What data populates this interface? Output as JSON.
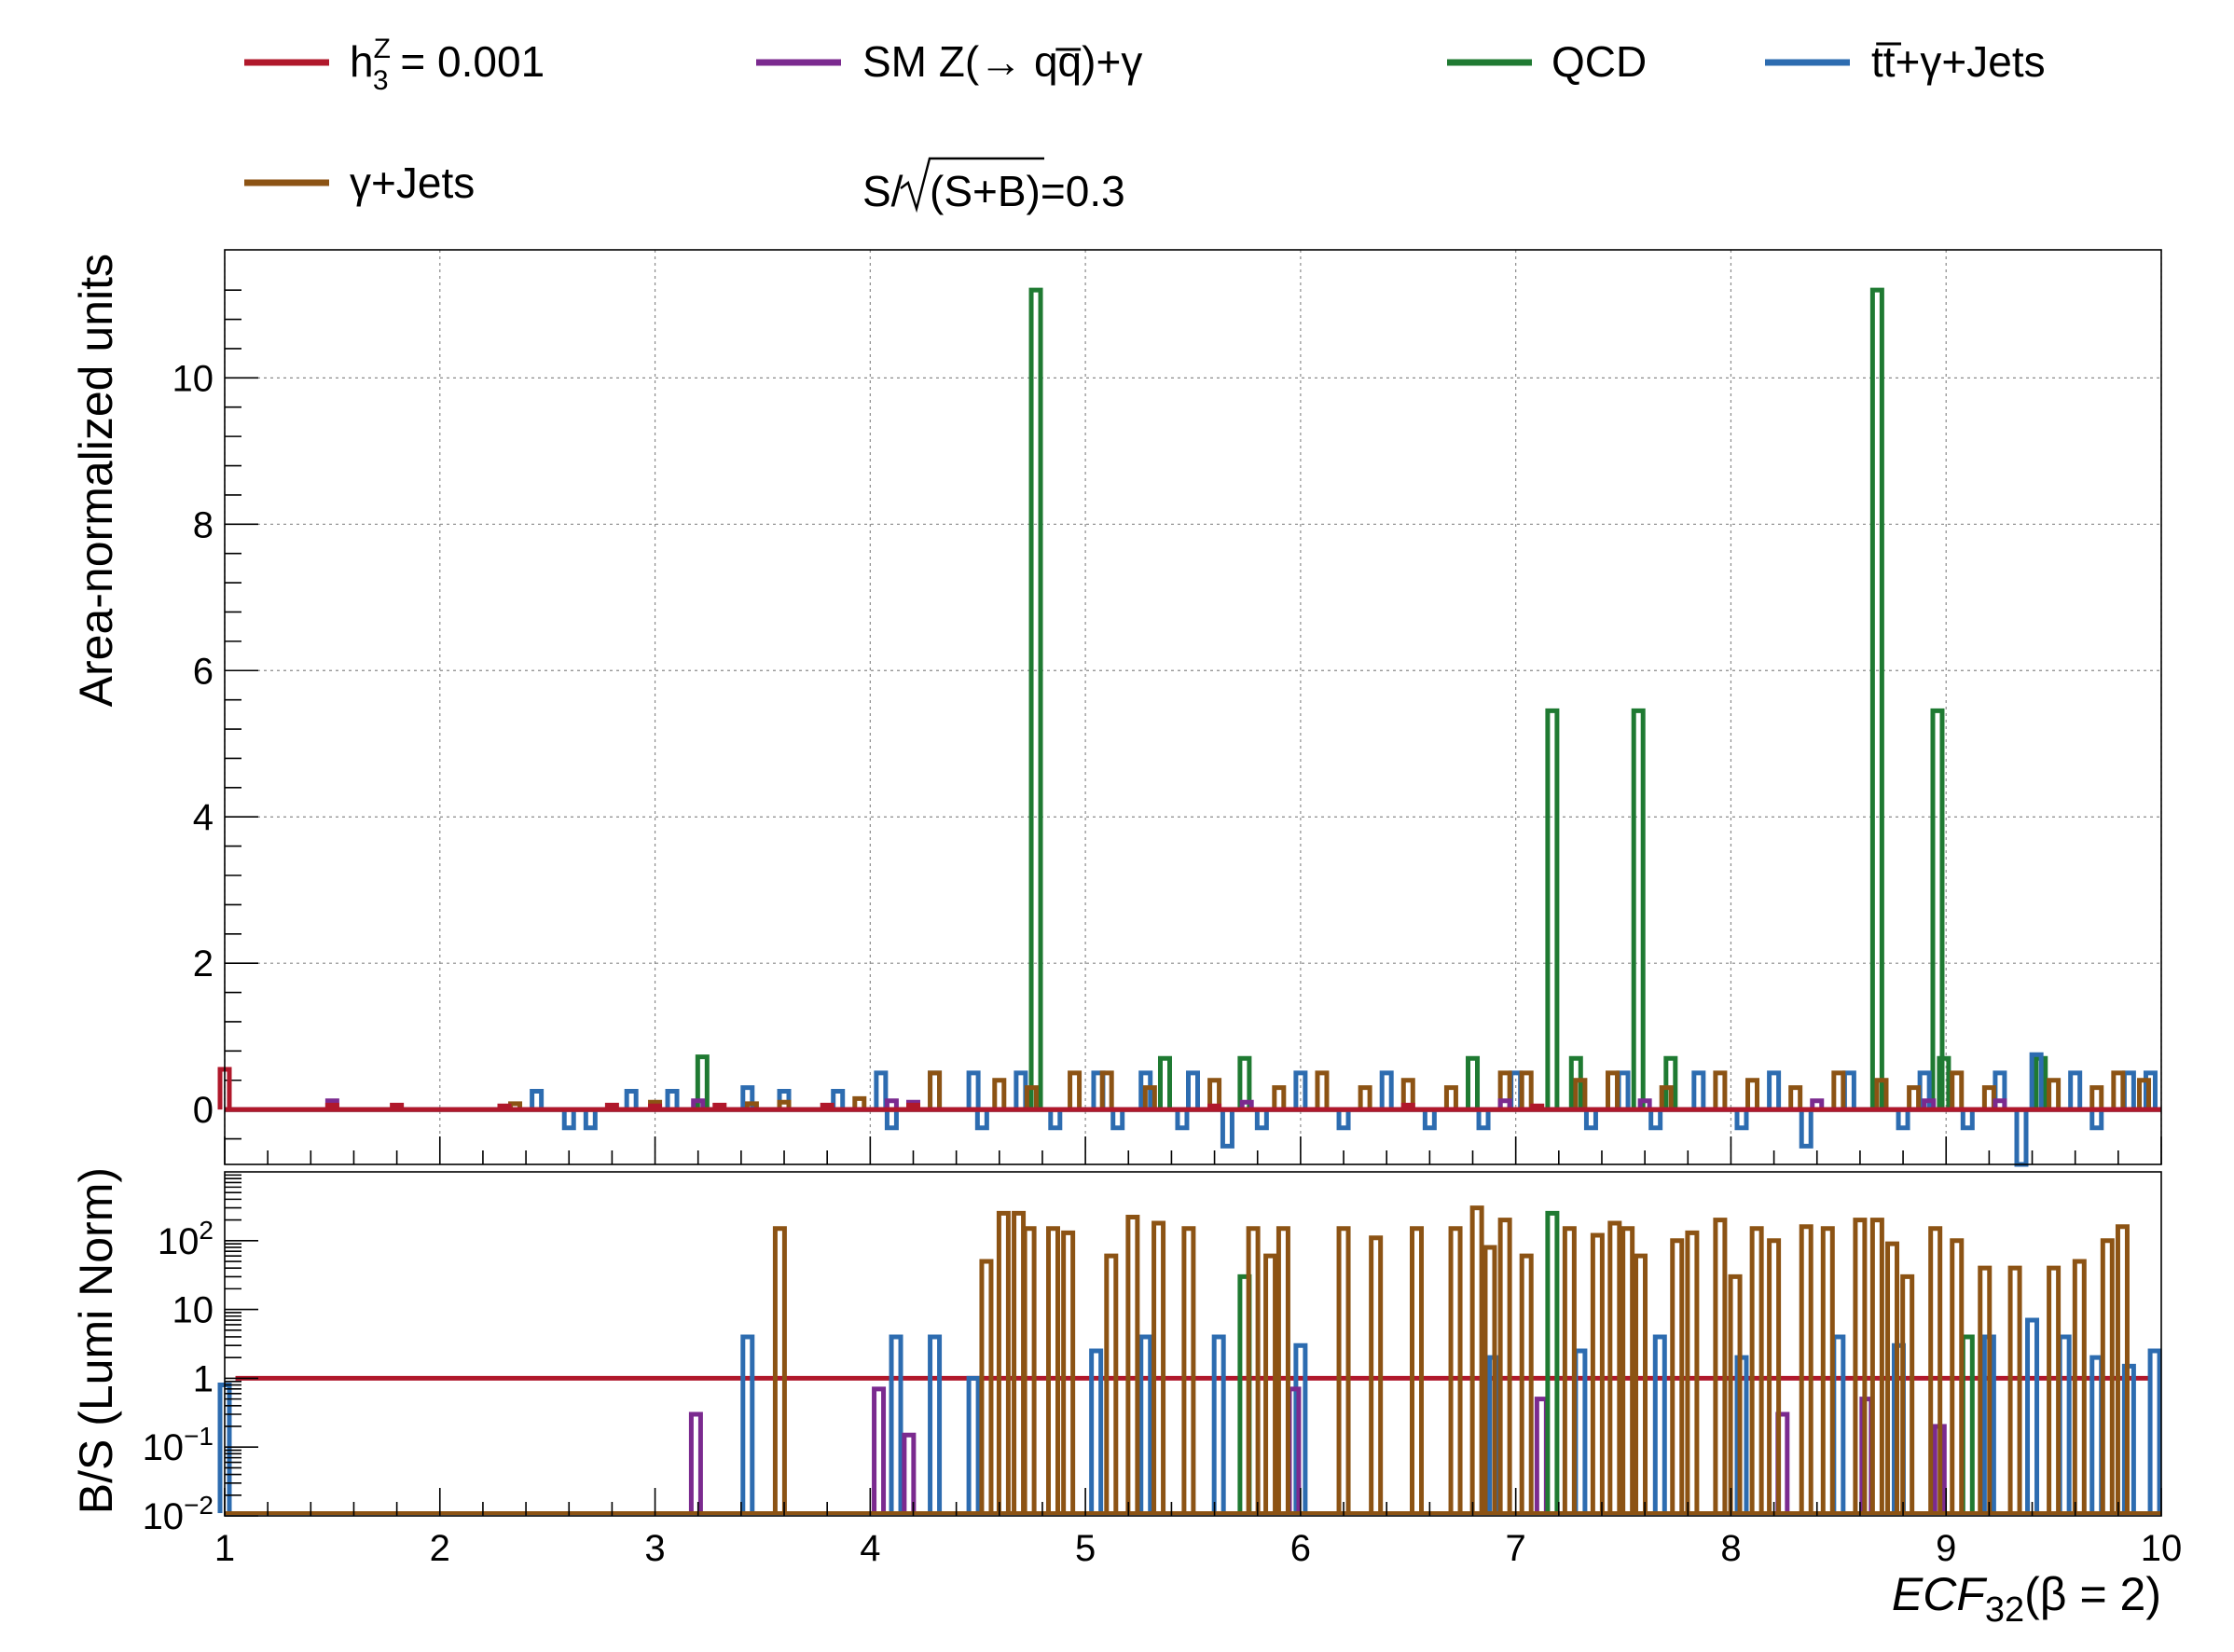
{
  "colors": {
    "signal": "#b0182b",
    "zqq": "#7b2a8f",
    "qcd": "#1f7a32",
    "ttbar": "#2d6cb0",
    "gjets": "#8c5314"
  },
  "legend": {
    "signal": "h3Z = 0.001",
    "signal_parts": {
      "base": "h",
      "sup": "Z",
      "sub": "3",
      "rest": " = 0.001"
    },
    "zqq": "SM Z(→ qq̅)+γ",
    "qcd": "QCD",
    "ttbar": "tt̅+γ+Jets",
    "gjets": "γ+Jets",
    "significance": "S/√(S+B)=0.3",
    "significance_parts": {
      "lhs": "S/",
      "rad": "(S+B)",
      "rhs": "=0.3"
    }
  },
  "chart_data": [
    {
      "type": "line",
      "step": true,
      "panel": "top",
      "ylabel": "Area-normalized units",
      "xlim": [
        1,
        10
      ],
      "ylim": [
        -0.75,
        11.75
      ],
      "yticks": [
        0,
        2,
        4,
        6,
        8,
        10
      ],
      "grid": true,
      "series": [
        {
          "key": "qcd",
          "name": "QCD",
          "spikes": [
            [
              3.22,
              0.72
            ],
            [
              4.77,
              11.2
            ],
            [
              5.37,
              0.7
            ],
            [
              5.74,
              0.7
            ],
            [
              6.8,
              0.7
            ],
            [
              7.17,
              5.45
            ],
            [
              7.28,
              0.7
            ],
            [
              7.57,
              5.45
            ],
            [
              7.72,
              0.7
            ],
            [
              8.68,
              11.2
            ],
            [
              8.96,
              5.45
            ],
            [
              8.99,
              0.7
            ],
            [
              9.44,
              0.7
            ]
          ]
        },
        {
          "key": "ttbar",
          "name": "tt̅+γ+Jets",
          "spikes": [
            [
              2.45,
              0.25
            ],
            [
              2.6,
              -0.25
            ],
            [
              2.7,
              -0.25
            ],
            [
              2.89,
              0.25
            ],
            [
              3.08,
              0.25
            ],
            [
              3.43,
              0.3
            ],
            [
              3.6,
              0.25
            ],
            [
              3.85,
              0.25
            ],
            [
              4.05,
              0.5
            ],
            [
              4.1,
              -0.25
            ],
            [
              4.3,
              0.5
            ],
            [
              4.48,
              0.5
            ],
            [
              4.52,
              -0.25
            ],
            [
              4.7,
              0.5
            ],
            [
              4.86,
              -0.25
            ],
            [
              5.06,
              0.5
            ],
            [
              5.15,
              -0.25
            ],
            [
              5.28,
              0.5
            ],
            [
              5.45,
              -0.25
            ],
            [
              5.5,
              0.5
            ],
            [
              5.66,
              -0.5
            ],
            [
              5.82,
              -0.25
            ],
            [
              6.0,
              0.5
            ],
            [
              6.2,
              -0.25
            ],
            [
              6.4,
              0.5
            ],
            [
              6.6,
              -0.25
            ],
            [
              6.85,
              -0.25
            ],
            [
              7.0,
              0.5
            ],
            [
              7.35,
              -0.25
            ],
            [
              7.5,
              0.5
            ],
            [
              7.65,
              -0.25
            ],
            [
              7.85,
              0.5
            ],
            [
              8.05,
              -0.25
            ],
            [
              8.2,
              0.5
            ],
            [
              8.35,
              -0.5
            ],
            [
              8.55,
              0.5
            ],
            [
              8.8,
              -0.25
            ],
            [
              8.9,
              0.5
            ],
            [
              9.1,
              -0.25
            ],
            [
              9.25,
              0.5
            ],
            [
              9.35,
              -0.75
            ],
            [
              9.42,
              0.75
            ],
            [
              9.6,
              0.5
            ],
            [
              9.7,
              -0.25
            ],
            [
              9.85,
              0.5
            ],
            [
              9.95,
              0.5
            ]
          ]
        },
        {
          "key": "gjets",
          "name": "γ+Jets",
          "spikes": [
            [
              2.35,
              0.08
            ],
            [
              3.0,
              0.1
            ],
            [
              3.45,
              0.08
            ],
            [
              3.6,
              0.1
            ],
            [
              3.95,
              0.15
            ],
            [
              4.3,
              0.5
            ],
            [
              4.6,
              0.4
            ],
            [
              4.75,
              0.3
            ],
            [
              4.95,
              0.5
            ],
            [
              5.1,
              0.5
            ],
            [
              5.3,
              0.3
            ],
            [
              5.6,
              0.4
            ],
            [
              5.9,
              0.3
            ],
            [
              6.1,
              0.5
            ],
            [
              6.3,
              0.3
            ],
            [
              6.5,
              0.4
            ],
            [
              6.7,
              0.3
            ],
            [
              6.95,
              0.5
            ],
            [
              7.05,
              0.5
            ],
            [
              7.3,
              0.4
            ],
            [
              7.45,
              0.5
            ],
            [
              7.7,
              0.3
            ],
            [
              7.95,
              0.5
            ],
            [
              8.1,
              0.4
            ],
            [
              8.3,
              0.3
            ],
            [
              8.5,
              0.5
            ],
            [
              8.7,
              0.4
            ],
            [
              8.85,
              0.3
            ],
            [
              9.05,
              0.5
            ],
            [
              9.2,
              0.3
            ],
            [
              9.5,
              0.4
            ],
            [
              9.7,
              0.3
            ],
            [
              9.8,
              0.5
            ],
            [
              9.92,
              0.4
            ]
          ]
        },
        {
          "key": "zqq",
          "name": "SM Z(→ qq̅)+γ",
          "spikes": [
            [
              1.5,
              0.12
            ],
            [
              3.2,
              0.12
            ],
            [
              4.1,
              0.12
            ],
            [
              4.2,
              0.1
            ],
            [
              5.75,
              0.1
            ],
            [
              6.95,
              0.12
            ],
            [
              7.6,
              0.12
            ],
            [
              8.4,
              0.12
            ],
            [
              8.92,
              0.12
            ],
            [
              9.25,
              0.12
            ]
          ]
        },
        {
          "key": "signal",
          "name": "h3Z = 0.001",
          "spikes": [
            [
              1.0,
              0.55
            ],
            [
              1.5,
              0.06
            ],
            [
              1.8,
              0.06
            ],
            [
              2.3,
              0.05
            ],
            [
              2.8,
              0.06
            ],
            [
              3.0,
              0.05
            ],
            [
              3.3,
              0.06
            ],
            [
              3.8,
              0.06
            ],
            [
              4.2,
              0.06
            ],
            [
              5.6,
              0.05
            ],
            [
              6.5,
              0.06
            ],
            [
              7.1,
              0.05
            ]
          ]
        }
      ]
    },
    {
      "type": "line",
      "step": true,
      "panel": "bottom",
      "ylabel": "B/S (Lumi Norm)",
      "xlabel": "ECF32(β = 2)",
      "xlabel_parts": {
        "main": "ECF",
        "sub": "32",
        "rest": "(β = 2)"
      },
      "xlim": [
        1,
        10
      ],
      "xticks": [
        1,
        2,
        3,
        4,
        5,
        6,
        7,
        8,
        9,
        10
      ],
      "yscale": "log",
      "ylim": [
        0.01,
        1000
      ],
      "yticks": [
        {
          "v": 0.01,
          "base": "10",
          "exp": "−2"
        },
        {
          "v": 0.1,
          "base": "10",
          "exp": "−1"
        },
        {
          "v": 1,
          "base": "1",
          "exp": ""
        },
        {
          "v": 10,
          "base": "10",
          "exp": ""
        },
        {
          "v": 100,
          "base": "10",
          "exp": "2"
        }
      ],
      "series": [
        {
          "key": "signal",
          "name": "h3Z = 0.001",
          "constant": 1,
          "x_range": [
            1.05,
            9.95
          ]
        },
        {
          "key": "ttbar",
          "name": "tt̅+γ+Jets",
          "spikes": [
            [
              1.0,
              0.8
            ],
            [
              3.43,
              4.0
            ],
            [
              4.12,
              4.0
            ],
            [
              4.3,
              4.0
            ],
            [
              4.48,
              1.0
            ],
            [
              5.05,
              2.5
            ],
            [
              5.28,
              4.0
            ],
            [
              5.62,
              4.0
            ],
            [
              6.0,
              3.0
            ],
            [
              6.9,
              2.0
            ],
            [
              7.3,
              2.5
            ],
            [
              7.67,
              4.0
            ],
            [
              8.05,
              2.0
            ],
            [
              8.5,
              4.0
            ],
            [
              8.78,
              3.0
            ],
            [
              9.2,
              4.0
            ],
            [
              9.4,
              7.0
            ],
            [
              9.55,
              4.0
            ],
            [
              9.7,
              2.0
            ],
            [
              9.85,
              1.5
            ],
            [
              9.97,
              2.5
            ]
          ]
        },
        {
          "key": "zqq",
          "name": "SM Z(→ qq̅)+γ",
          "spikes": [
            [
              3.19,
              0.3
            ],
            [
              4.04,
              0.7
            ],
            [
              4.18,
              0.15
            ],
            [
              5.97,
              0.7
            ],
            [
              7.12,
              0.5
            ],
            [
              8.24,
              0.3
            ],
            [
              8.63,
              0.5
            ],
            [
              8.97,
              0.2
            ]
          ]
        },
        {
          "key": "qcd",
          "name": "QCD",
          "spikes": [
            [
              5.74,
              30
            ],
            [
              7.17,
              250
            ],
            [
              9.1,
              4.0
            ]
          ]
        },
        {
          "key": "gjets",
          "name": "γ+Jets",
          "spikes": [
            [
              3.58,
              150
            ],
            [
              4.54,
              50
            ],
            [
              4.62,
              250
            ],
            [
              4.69,
              250
            ],
            [
              4.74,
              150
            ],
            [
              4.85,
              150
            ],
            [
              4.92,
              130
            ],
            [
              5.12,
              60
            ],
            [
              5.22,
              220
            ],
            [
              5.34,
              180
            ],
            [
              5.48,
              150
            ],
            [
              5.78,
              150
            ],
            [
              5.86,
              60
            ],
            [
              5.92,
              150
            ],
            [
              6.2,
              150
            ],
            [
              6.35,
              110
            ],
            [
              6.54,
              150
            ],
            [
              6.72,
              150
            ],
            [
              6.82,
              300
            ],
            [
              6.88,
              80
            ],
            [
              6.95,
              200
            ],
            [
              7.05,
              60
            ],
            [
              7.25,
              150
            ],
            [
              7.38,
              120
            ],
            [
              7.46,
              180
            ],
            [
              7.52,
              150
            ],
            [
              7.58,
              60
            ],
            [
              7.75,
              100
            ],
            [
              7.82,
              130
            ],
            [
              7.95,
              200
            ],
            [
              8.02,
              30
            ],
            [
              8.12,
              150
            ],
            [
              8.2,
              100
            ],
            [
              8.35,
              160
            ],
            [
              8.45,
              150
            ],
            [
              8.6,
              200
            ],
            [
              8.68,
              200
            ],
            [
              8.75,
              90
            ],
            [
              8.82,
              30
            ],
            [
              8.95,
              150
            ],
            [
              9.05,
              100
            ],
            [
              9.18,
              40
            ],
            [
              9.32,
              40
            ],
            [
              9.5,
              40
            ],
            [
              9.62,
              50
            ],
            [
              9.75,
              100
            ],
            [
              9.82,
              160
            ]
          ]
        }
      ]
    }
  ]
}
